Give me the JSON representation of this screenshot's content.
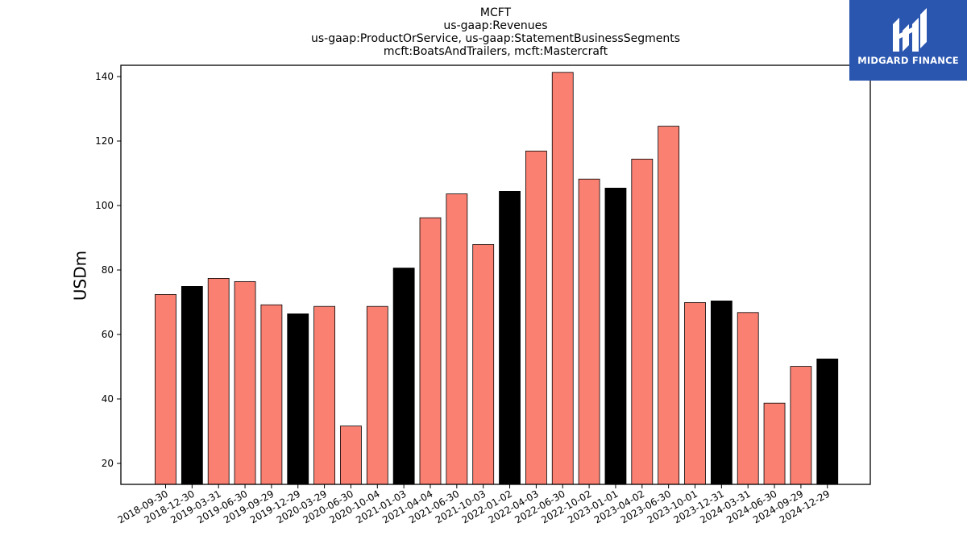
{
  "chart_data": {
    "type": "bar",
    "title_lines": [
      "MCFT",
      "us-gaap:Revenues",
      "us-gaap:ProductOrService, us-gaap:StatementBusinessSegments",
      "mcft:BoatsAndTrailers, mcft:Mastercraft"
    ],
    "ylabel": "USDm",
    "xlabel": "",
    "ylim": [
      13.5,
      143.5
    ],
    "yticks": [
      20,
      40,
      60,
      80,
      100,
      120,
      140
    ],
    "categories": [
      "2018-09-30",
      "2018-12-30",
      "2019-03-31",
      "2019-06-30",
      "2019-09-29",
      "2019-12-29",
      "2020-03-29",
      "2020-06-30",
      "2020-10-04",
      "2021-01-03",
      "2021-04-04",
      "2021-06-30",
      "2021-10-03",
      "2022-01-02",
      "2022-04-03",
      "2022-06-30",
      "2022-10-02",
      "2023-01-01",
      "2023-04-02",
      "2023-06-30",
      "2023-10-01",
      "2023-12-31",
      "2024-03-31",
      "2024-06-30",
      "2024-09-29",
      "2024-12-29"
    ],
    "values": [
      72.4,
      74.9,
      77.4,
      76.4,
      69.2,
      66.4,
      68.7,
      31.6,
      68.7,
      80.6,
      96.2,
      103.6,
      87.9,
      104.4,
      116.9,
      141.3,
      108.2,
      105.4,
      114.4,
      124.6,
      69.9,
      70.4,
      66.8,
      38.7,
      50.1,
      52.4
    ],
    "bar_colors": [
      "#fa8072",
      "#000000",
      "#fa8072",
      "#fa8072",
      "#fa8072",
      "#000000",
      "#fa8072",
      "#fa8072",
      "#fa8072",
      "#000000",
      "#fa8072",
      "#fa8072",
      "#fa8072",
      "#000000",
      "#fa8072",
      "#fa8072",
      "#fa8072",
      "#000000",
      "#fa8072",
      "#fa8072",
      "#fa8072",
      "#000000",
      "#fa8072",
      "#fa8072",
      "#fa8072",
      "#000000"
    ],
    "grid": false,
    "legend": "none"
  },
  "logo": {
    "text": "MIDGARD FINANCE",
    "background": "#2a56b0"
  }
}
